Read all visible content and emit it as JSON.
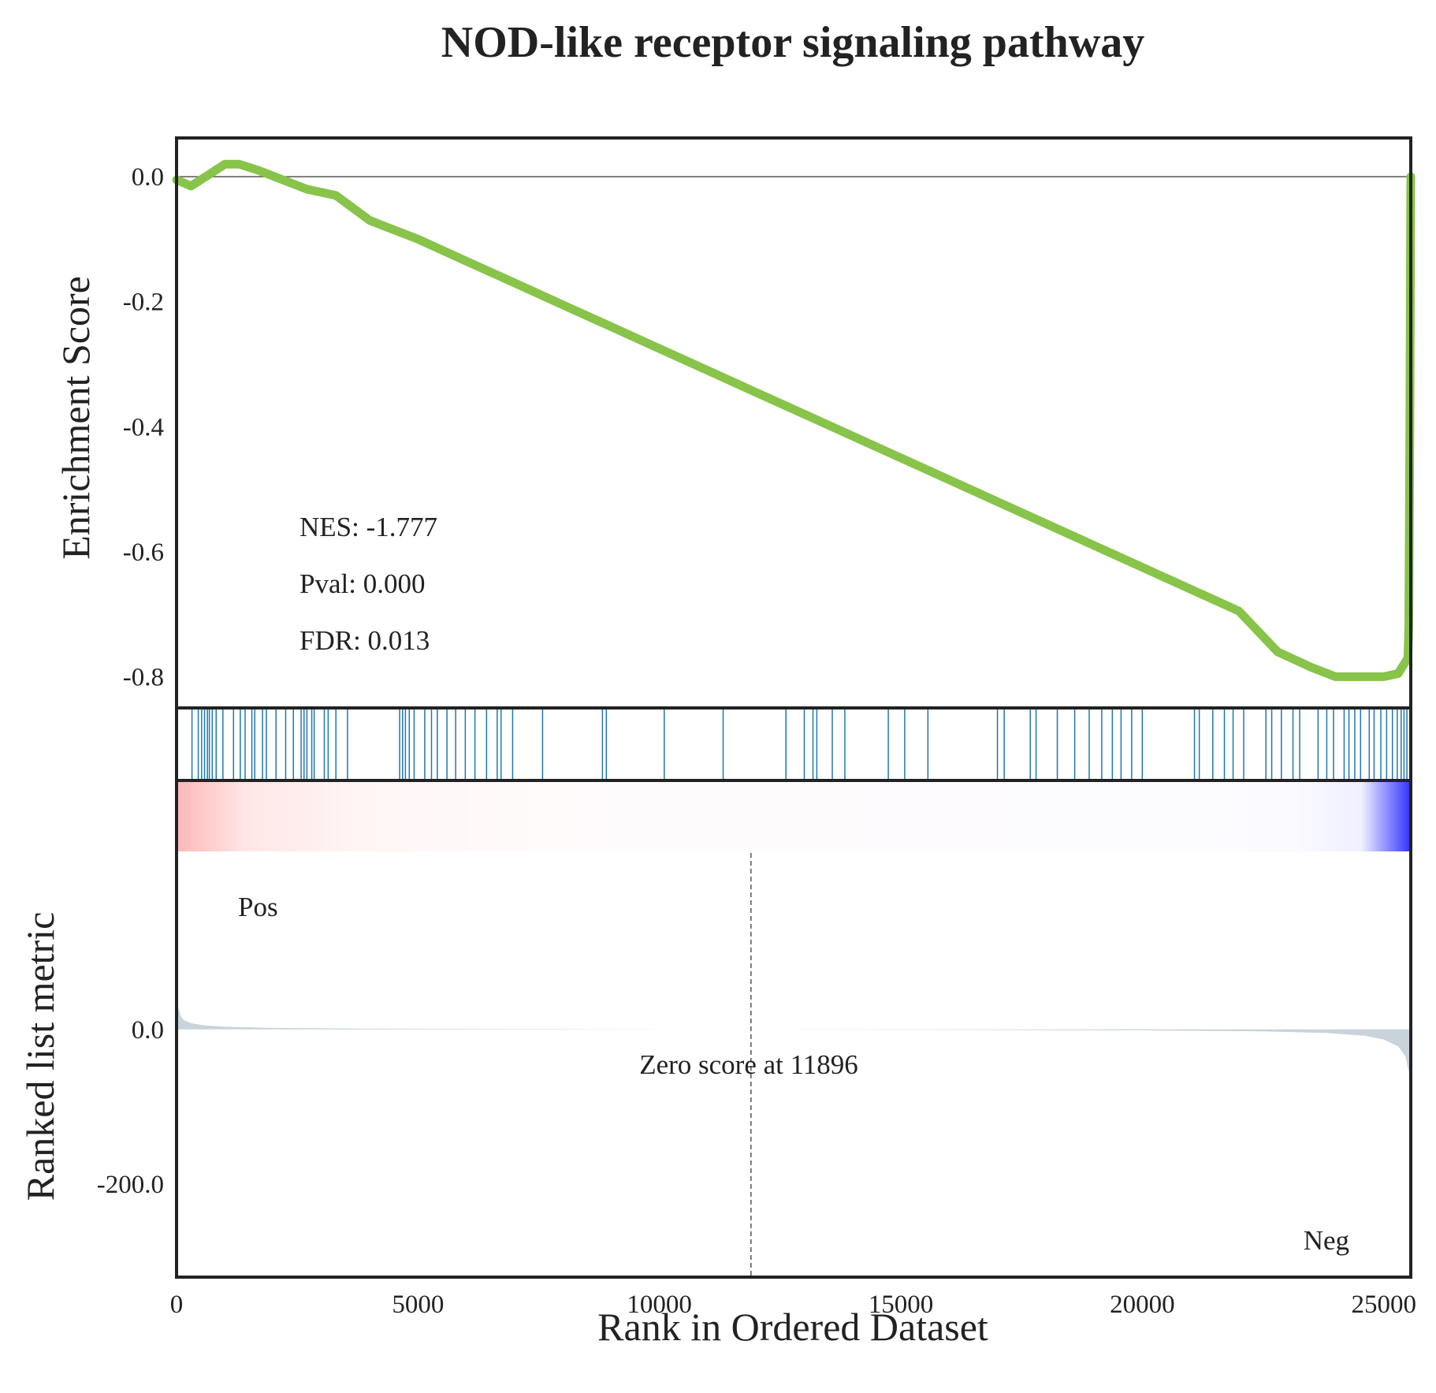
{
  "chart_data": {
    "type": "line",
    "title": "NOD-like receptor signaling pathway",
    "es_panel": {
      "ylabel": "Enrichment Score",
      "ylim": [
        -0.85,
        0.062
      ],
      "yticks": [
        0.0,
        -0.2,
        -0.4,
        -0.6,
        -0.8
      ],
      "ytick_labels": [
        "0.0",
        "-0.2",
        "-0.4",
        "-0.6",
        "-0.8"
      ],
      "line_color": "#88c34a",
      "series": [
        {
          "x": [
            0,
            300,
            600,
            1000,
            1300,
            1700,
            2200,
            2700,
            3300,
            4000,
            5000,
            6000,
            7000,
            8000,
            9000,
            10000,
            11000,
            12000,
            13000,
            14000,
            15000,
            16000,
            17000,
            18000,
            19000,
            20000,
            21000,
            22000,
            22800,
            23500,
            24000,
            24500,
            25000,
            25300,
            25500,
            25520,
            25540,
            25560
          ],
          "y": [
            -0.005,
            -0.015,
            0.0,
            0.02,
            0.02,
            0.01,
            -0.005,
            -0.02,
            -0.03,
            -0.07,
            -0.1,
            -0.135,
            -0.17,
            -0.205,
            -0.24,
            -0.275,
            -0.31,
            -0.345,
            -0.38,
            -0.415,
            -0.45,
            -0.485,
            -0.52,
            -0.555,
            -0.59,
            -0.625,
            -0.66,
            -0.695,
            -0.76,
            -0.785,
            -0.8,
            -0.8,
            -0.8,
            -0.795,
            -0.77,
            -0.72,
            -0.4,
            0.0
          ]
        }
      ]
    },
    "stats": {
      "nes": "NES: -1.777",
      "pval": "Pval: 0.000",
      "fdr": "FDR: 0.013"
    },
    "hits": {
      "color": "#1f77b4",
      "positions": [
        320,
        450,
        520,
        580,
        640,
        680,
        740,
        820,
        960,
        1180,
        1320,
        1420,
        1560,
        1620,
        1780,
        1860,
        2060,
        2260,
        2420,
        2580,
        2640,
        2700,
        2800,
        2850,
        3060,
        3140,
        3300,
        3540,
        4620,
        4680,
        4740,
        4820,
        4920,
        5140,
        5280,
        5400,
        5600,
        5780,
        5980,
        6180,
        6420,
        6640,
        6720,
        6960,
        7580,
        8820,
        8900,
        10100,
        11320,
        12620,
        13000,
        13180,
        13260,
        13580,
        13840,
        14740,
        15080,
        15560,
        17000,
        17140,
        17680,
        17800,
        18240,
        18600,
        18900,
        19160,
        19380,
        19560,
        19780,
        20000,
        21080,
        21180,
        21460,
        21700,
        21880,
        22100,
        22560,
        22680,
        22880,
        23120,
        23260,
        23640,
        23820,
        23960,
        24180,
        24280,
        24400,
        24520,
        24700,
        24800,
        24940,
        25060,
        25180,
        25280,
        25360,
        25420,
        25480,
        25540
      ]
    },
    "heatmap": {
      "pos_color": "#ff0000",
      "neg_color": "#0000ff"
    },
    "metric_panel": {
      "ylabel": "Ranked list metric",
      "xlabel": "Rank in Ordered Dataset",
      "xlim": [
        0,
        25560
      ],
      "ylim": [
        -320,
        230
      ],
      "xticks": [
        0,
        5000,
        10000,
        15000,
        20000,
        25000
      ],
      "xtick_labels": [
        "0",
        "5000",
        "10000",
        "15000",
        "20000",
        "25000"
      ],
      "yticks": [
        0.0,
        -200.0
      ],
      "ytick_labels": [
        "0.0",
        "-200.0"
      ],
      "fill_color": "#c8d3db",
      "series": [
        {
          "x": [
            0,
            30,
            80,
            150,
            300,
            600,
            1000,
            2000,
            4000,
            8000,
            11896,
            16000,
            20000,
            22500,
            23800,
            24600,
            25000,
            25300,
            25450,
            25520,
            25560
          ],
          "y": [
            45,
            30,
            18,
            12,
            8,
            5,
            3.5,
            2,
            1,
            0.4,
            0,
            -0.5,
            -1.2,
            -2.5,
            -4.5,
            -8,
            -13,
            -22,
            -35,
            -55,
            -85
          ]
        }
      ],
      "zero_line_x": 11896,
      "zero_label": "Zero score at 11896",
      "pos_label": "Pos",
      "neg_label": "Neg",
      "pos_label_color": "#ff0000",
      "neg_label_color": "#0000ff"
    }
  }
}
